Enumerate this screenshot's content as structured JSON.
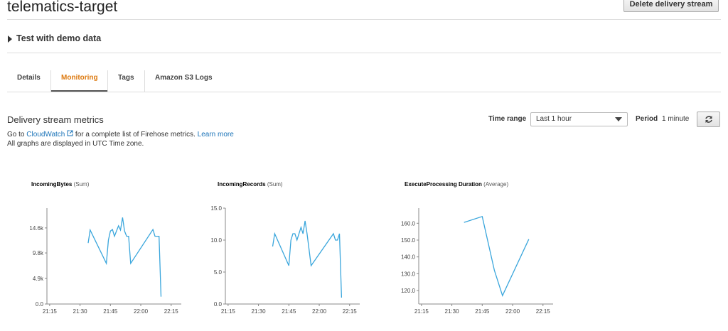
{
  "header": {
    "title": "telematics-target",
    "button": "Delete delivery stream"
  },
  "demo": {
    "label": "Test with demo data"
  },
  "tabs": [
    "Details",
    "Monitoring",
    "Tags",
    "Amazon S3 Logs"
  ],
  "metrics": {
    "title": "Delivery stream metrics",
    "time_range_label": "Time range",
    "time_range_value": "Last 1 hour",
    "period_label": "Period",
    "period_value": "1 minute",
    "info": {
      "prefix": "Go to",
      "link": "CloudWatch",
      "text": "for a complete list of Firehose metrics.",
      "learn_more": "Learn more"
    },
    "note": "All graphs are displayed in UTC Time zone."
  },
  "chart_data": [
    {
      "type": "line",
      "title": "IncomingBytes",
      "subtitle": "(Sum)",
      "color": "#3aa6dc",
      "x": [
        "21:34",
        "21:35",
        "21:43",
        "21:44",
        "21:45",
        "21:46",
        "21:47",
        "21:49",
        "21:50",
        "21:51",
        "21:52",
        "21:53",
        "21:54",
        "21:55",
        "22:06",
        "22:07",
        "22:09",
        "22:10"
      ],
      "values": [
        11700,
        14200,
        7800,
        12300,
        14000,
        14300,
        13000,
        15000,
        14200,
        16600,
        14000,
        13000,
        13000,
        7800,
        14300,
        13000,
        13000,
        1400
      ],
      "ylim": [
        0,
        18400
      ],
      "yticks": [
        {
          "value": 0,
          "label": "0.0"
        },
        {
          "value": 4900,
          "label": "4.9k"
        },
        {
          "value": 9800,
          "label": "9.8k"
        },
        {
          "value": 14600,
          "label": "14.6k"
        }
      ],
      "xlim": [
        "21:14",
        "22:20"
      ],
      "xticks": [
        "21:15",
        "21:30",
        "21:45",
        "22:00",
        "22:15"
      ]
    },
    {
      "type": "line",
      "title": "IncomingRecords",
      "subtitle": "(Sum)",
      "color": "#3aa6dc",
      "x": [
        "21:37",
        "21:38",
        "21:45",
        "21:46",
        "21:47",
        "21:48",
        "21:49",
        "21:51",
        "21:52",
        "21:53",
        "21:54",
        "21:56",
        "22:07",
        "22:08",
        "22:09",
        "22:10",
        "22:11"
      ],
      "values": [
        9,
        11,
        6,
        10,
        11,
        11,
        10,
        12,
        11,
        13,
        11,
        6,
        11,
        10,
        10,
        11,
        1
      ],
      "ylim": [
        0,
        15
      ],
      "yticks": [
        {
          "value": 0,
          "label": "0.0"
        },
        {
          "value": 5,
          "label": "5.0"
        },
        {
          "value": 10,
          "label": "10.0"
        },
        {
          "value": 15,
          "label": "15.0"
        }
      ],
      "xlim": [
        "21:14",
        "22:20"
      ],
      "xticks": [
        "21:15",
        "21:30",
        "21:45",
        "22:00",
        "22:15"
      ]
    },
    {
      "type": "line",
      "title": "ExecuteProcessing Duration",
      "subtitle": "(Average)",
      "color": "#3aa6dc",
      "x": [
        "21:36",
        "21:45",
        "21:51",
        "21:55",
        "22:08"
      ],
      "values": [
        160.5,
        164,
        132,
        117,
        150.5
      ],
      "ylim": [
        112,
        169
      ],
      "yticks": [
        {
          "value": 120,
          "label": "120.0"
        },
        {
          "value": 130,
          "label": "130.0"
        },
        {
          "value": 140,
          "label": "140.0"
        },
        {
          "value": 150,
          "label": "150.0"
        },
        {
          "value": 160,
          "label": "160.0"
        }
      ],
      "xlim": [
        "21:14",
        "22:20"
      ],
      "xticks": [
        "21:15",
        "21:30",
        "21:45",
        "22:00",
        "22:15"
      ]
    }
  ]
}
